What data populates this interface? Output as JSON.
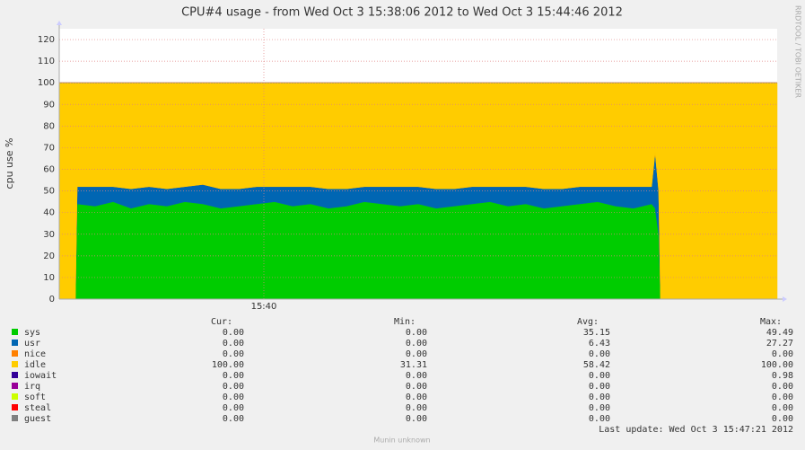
{
  "chart_data": {
    "type": "stacked_area",
    "title": "CPU#4 usage - from Wed Oct  3 15:38:06 2012 to Wed Oct  3 15:44:46 2012",
    "y_label": "cpu use %",
    "side_label": "RRDTOOL / TOBI OETIKER",
    "footer": "Munin unknown",
    "last_update": "Last update:  Wed Oct  3 15:47:21 2012",
    "x": [
      0,
      9,
      10,
      20,
      30,
      40,
      50,
      60,
      70,
      80,
      90,
      100,
      110,
      120,
      130,
      140,
      150,
      160,
      170,
      180,
      190,
      200,
      210,
      220,
      230,
      240,
      250,
      260,
      270,
      280,
      290,
      300,
      310,
      320,
      330,
      332,
      334,
      335,
      400
    ],
    "xlim": [
      0,
      400
    ],
    "xticks": [
      {
        "value": 114,
        "label": "15:40"
      }
    ],
    "ylim": [
      0,
      125
    ],
    "yticks": [
      0,
      10,
      20,
      30,
      40,
      50,
      60,
      70,
      80,
      90,
      100,
      110,
      120
    ],
    "grid": true,
    "series": [
      {
        "name": "sys",
        "color": "#00cc00",
        "values": [
          0,
          0,
          44,
          43,
          45,
          42,
          44,
          43,
          45,
          44,
          42,
          43,
          44,
          45,
          43,
          44,
          42,
          43,
          45,
          44,
          43,
          44,
          42,
          43,
          44,
          45,
          43,
          44,
          42,
          43,
          44,
          45,
          43,
          42,
          44,
          42,
          30,
          0,
          0
        ]
      },
      {
        "name": "usr",
        "color": "#0066b3",
        "values": [
          0,
          0,
          8,
          9,
          7,
          9,
          8,
          8,
          7,
          9,
          9,
          8,
          8,
          7,
          9,
          8,
          9,
          8,
          7,
          8,
          9,
          8,
          9,
          8,
          8,
          7,
          9,
          8,
          9,
          8,
          8,
          7,
          9,
          10,
          8,
          26,
          20,
          0,
          0
        ]
      },
      {
        "name": "nice",
        "color": "#ff8000",
        "values": [
          0,
          0,
          0,
          0,
          0,
          0,
          0,
          0,
          0,
          0,
          0,
          0,
          0,
          0,
          0,
          0,
          0,
          0,
          0,
          0,
          0,
          0,
          0,
          0,
          0,
          0,
          0,
          0,
          0,
          0,
          0,
          0,
          0,
          0,
          0,
          0,
          0,
          0,
          0
        ]
      },
      {
        "name": "idle",
        "color": "#ffcc00",
        "values": [
          100,
          100,
          48,
          48,
          48,
          49,
          48,
          49,
          48,
          47,
          49,
          49,
          48,
          48,
          48,
          48,
          49,
          49,
          48,
          48,
          48,
          48,
          49,
          49,
          48,
          48,
          48,
          48,
          49,
          49,
          48,
          48,
          48,
          48,
          48,
          32,
          50,
          100,
          100
        ]
      },
      {
        "name": "iowait",
        "color": "#330099",
        "values": [
          0,
          0,
          0,
          0,
          0,
          0,
          0,
          0,
          0,
          0,
          0,
          0,
          0,
          0,
          0,
          0,
          0,
          0,
          0,
          0,
          0,
          0,
          0,
          0,
          0,
          0,
          0,
          0,
          0,
          0,
          0,
          0,
          0,
          0,
          0,
          0,
          0,
          0,
          0
        ]
      },
      {
        "name": "irq",
        "color": "#990099",
        "values": [
          0,
          0,
          0,
          0,
          0,
          0,
          0,
          0,
          0,
          0,
          0,
          0,
          0,
          0,
          0,
          0,
          0,
          0,
          0,
          0,
          0,
          0,
          0,
          0,
          0,
          0,
          0,
          0,
          0,
          0,
          0,
          0,
          0,
          0,
          0,
          0,
          0,
          0,
          0
        ]
      },
      {
        "name": "soft",
        "color": "#ccff00",
        "values": [
          0,
          0,
          0,
          0,
          0,
          0,
          0,
          0,
          0,
          0,
          0,
          0,
          0,
          0,
          0,
          0,
          0,
          0,
          0,
          0,
          0,
          0,
          0,
          0,
          0,
          0,
          0,
          0,
          0,
          0,
          0,
          0,
          0,
          0,
          0,
          0,
          0,
          0,
          0
        ]
      },
      {
        "name": "steal",
        "color": "#ff0000",
        "values": [
          0,
          0,
          0,
          0,
          0,
          0,
          0,
          0,
          0,
          0,
          0,
          0,
          0,
          0,
          0,
          0,
          0,
          0,
          0,
          0,
          0,
          0,
          0,
          0,
          0,
          0,
          0,
          0,
          0,
          0,
          0,
          0,
          0,
          0,
          0,
          0,
          0,
          0,
          0
        ]
      },
      {
        "name": "guest",
        "color": "#808080",
        "values": [
          0,
          0,
          0,
          0,
          0,
          0,
          0,
          0,
          0,
          0,
          0,
          0,
          0,
          0,
          0,
          0,
          0,
          0,
          0,
          0,
          0,
          0,
          0,
          0,
          0,
          0,
          0,
          0,
          0,
          0,
          0,
          0,
          0,
          0,
          0,
          0,
          0,
          0,
          0
        ]
      }
    ],
    "legend_table": {
      "headers": [
        "Cur:",
        "Min:",
        "Avg:",
        "Max:"
      ],
      "rows": [
        [
          "0.00",
          "0.00",
          "35.15",
          "49.49"
        ],
        [
          "0.00",
          "0.00",
          "6.43",
          "27.27"
        ],
        [
          "0.00",
          "0.00",
          "0.00",
          "0.00"
        ],
        [
          "100.00",
          "31.31",
          "58.42",
          "100.00"
        ],
        [
          "0.00",
          "0.00",
          "0.00",
          "0.98"
        ],
        [
          "0.00",
          "0.00",
          "0.00",
          "0.00"
        ],
        [
          "0.00",
          "0.00",
          "0.00",
          "0.00"
        ],
        [
          "0.00",
          "0.00",
          "0.00",
          "0.00"
        ],
        [
          "0.00",
          "0.00",
          "0.00",
          "0.00"
        ]
      ]
    }
  }
}
